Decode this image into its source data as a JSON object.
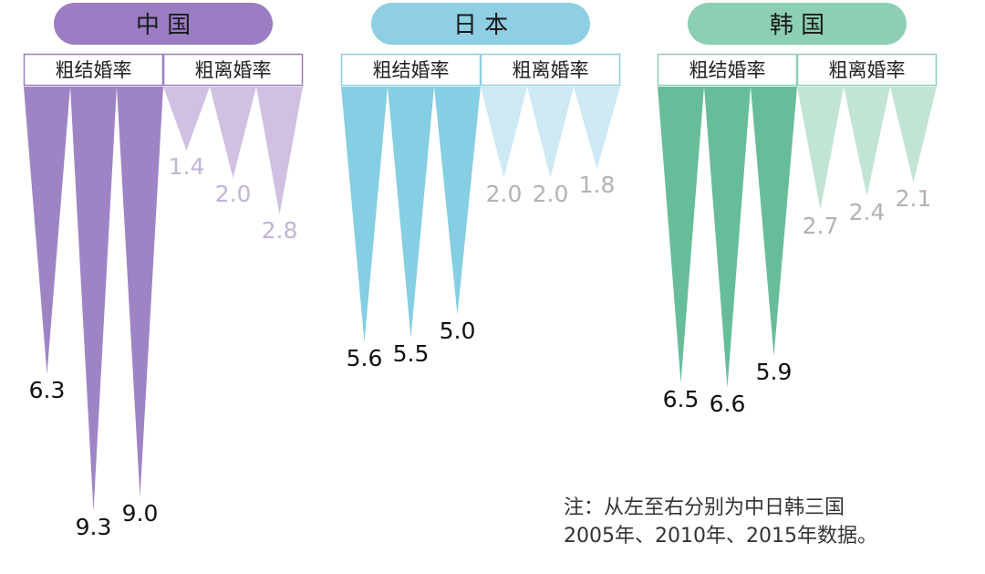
{
  "chart_data": {
    "type": "bar",
    "categories": [
      "2005年",
      "2010年",
      "2015年"
    ],
    "countries": [
      {
        "name": "中 国",
        "colors": {
          "pill": "#9b7dc3",
          "marriage": "#9a7dc2",
          "divorce": "#cebde0",
          "divorce_label": "#c3b4d8",
          "marriage_label": "#111111"
        },
        "series": [
          {
            "name": "粗结婚率",
            "values": [
              6.3,
              9.3,
              9.0
            ]
          },
          {
            "name": "粗离婚率",
            "values": [
              1.4,
              2.0,
              2.8
            ]
          }
        ]
      },
      {
        "name": "日 本",
        "colors": {
          "pill": "#8ecfe3",
          "marriage": "#7ecbe2",
          "divorce": "#c9e8f3",
          "divorce_label": "#b3b3b3",
          "marriage_label": "#111111"
        },
        "series": [
          {
            "name": "粗结婚率",
            "values": [
              5.6,
              5.5,
              5.0
            ]
          },
          {
            "name": "粗离婚率",
            "values": [
              2.0,
              2.0,
              1.8
            ]
          }
        ]
      },
      {
        "name": "韩 国",
        "colors": {
          "pill": "#8dcfb4",
          "marriage": "#5fb995",
          "divorce": "#bfe3d3",
          "divorce_label": "#b3b3b3",
          "marriage_label": "#111111"
        },
        "series": [
          {
            "name": "粗结婚率",
            "values": [
              6.5,
              6.6,
              5.9
            ]
          },
          {
            "name": "粗离婚率",
            "values": [
              2.7,
              2.4,
              2.1
            ]
          }
        ]
      }
    ],
    "note": [
      "注：从左至右分别为中日韩三国",
      "2005年、2010年、2015年数据。"
    ]
  }
}
